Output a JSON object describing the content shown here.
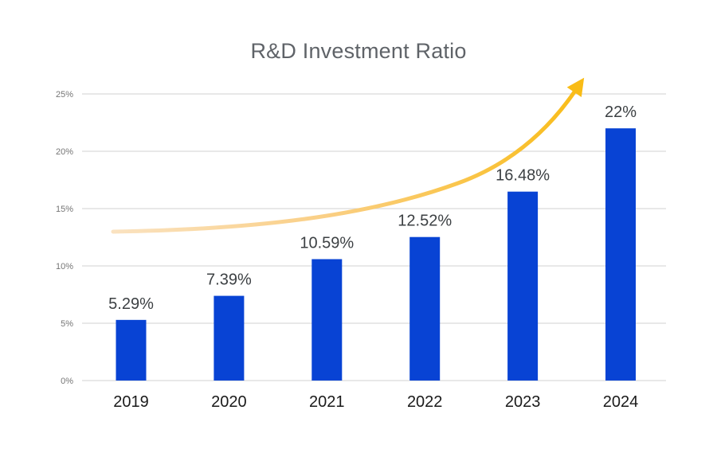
{
  "chart_data": {
    "type": "bar",
    "title": "R&D Investment Ratio",
    "categories": [
      "2019",
      "2020",
      "2021",
      "2022",
      "2023",
      "2024"
    ],
    "values": [
      5.29,
      7.39,
      10.59,
      12.52,
      16.48,
      22
    ],
    "value_labels": [
      "5.29%",
      "7.39%",
      "10.59%",
      "12.52%",
      "16.48%",
      "22%"
    ],
    "xlabel": "",
    "ylabel": "",
    "y_tick_values": [
      0,
      5,
      10,
      15,
      20,
      25
    ],
    "y_tick_labels": [
      "0%",
      "5%",
      "10%",
      "15%",
      "20%",
      "25%"
    ],
    "ylim": [
      0,
      25
    ],
    "grid": "horizontal",
    "legend": "none",
    "trend_arrow": {
      "shape": "exponential-upward-curve",
      "start_value_pct": 13,
      "end": "above 2024 bar, past 25% gridline"
    }
  },
  "colors": {
    "background": "#FFFFFF",
    "bar": "#0843D4",
    "gridline": "#D9D9D9",
    "y_tick_text": "#757575",
    "value_label_text": "#3C4043",
    "x_axis_label_text": "#1A1A1A",
    "title_text": "#5F6368",
    "arrow_gradient_start": "#FAE2C0",
    "arrow_gradient_mid": "#FACF85",
    "arrow_gradient_end": "#F9BC16"
  }
}
